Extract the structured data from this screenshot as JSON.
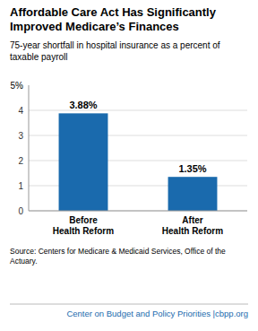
{
  "chart_data": {
    "type": "bar",
    "title": "Affordable Care Act Has Significantly\nImproved Medicare’s Finances",
    "subtitle": "75-year shortfall in hospital insurance as a percent of\ntaxable payroll",
    "annotations": [
      "5%"
    ],
    "categories": [
      "Before\nHealth Reform",
      "After\nHealth Reform"
    ],
    "values": [
      3.88,
      1.35
    ],
    "value_labels": [
      "3.88%",
      "1.35%"
    ],
    "data_labels": true,
    "color": "#1a6aad",
    "ylim": [
      0,
      5
    ],
    "yticks": [
      0,
      1,
      2,
      3,
      4
    ],
    "grid": true,
    "source": "Source: Centers for Medicare & Medicaid Services, Office of the Actuary.",
    "footer": "Center on Budget and Policy Priorities |cbpp.org"
  }
}
